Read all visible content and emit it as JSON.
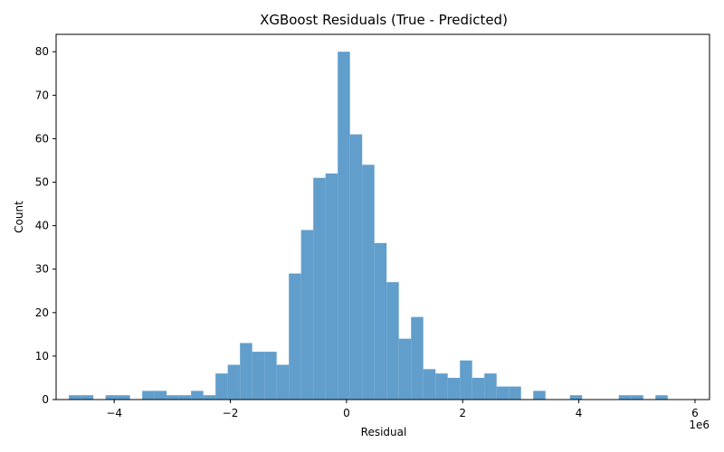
{
  "chart_data": {
    "type": "histogram",
    "title": "XGBoost Residuals (True - Predicted)",
    "xlabel": "Residual",
    "ylabel": "Count",
    "x_offset_label": "1e6",
    "xlim": [
      -5.0,
      6.25
    ],
    "ylim": [
      0,
      84
    ],
    "x_ticks": [
      -4,
      -2,
      0,
      2,
      4,
      6
    ],
    "y_ticks": [
      0,
      10,
      20,
      30,
      40,
      50,
      60,
      70,
      80
    ],
    "bar_color": "#4a90c4",
    "bin_start": -4.78,
    "bin_width": 0.2104,
    "counts": [
      1,
      1,
      0,
      1,
      1,
      0,
      2,
      2,
      1,
      1,
      2,
      1,
      6,
      8,
      13,
      11,
      11,
      8,
      29,
      39,
      51,
      52,
      80,
      61,
      54,
      36,
      27,
      14,
      19,
      7,
      6,
      5,
      9,
      5,
      6,
      3,
      3,
      0,
      2,
      0,
      0,
      1,
      0,
      0,
      0,
      1,
      1,
      0,
      1
    ]
  }
}
